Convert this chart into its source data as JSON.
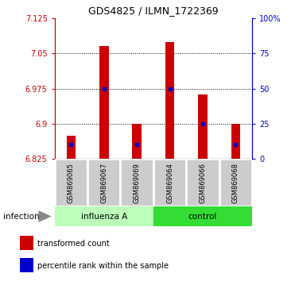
{
  "title": "GDS4825 / ILMN_1722369",
  "samples": [
    "GSM869065",
    "GSM869067",
    "GSM869069",
    "GSM869064",
    "GSM869066",
    "GSM869068"
  ],
  "group_labels": [
    "influenza A",
    "control"
  ],
  "influenza_color": "#bbffbb",
  "control_color": "#33dd33",
  "ymin": 6.825,
  "ymax": 7.125,
  "yticks": [
    6.825,
    6.9,
    6.975,
    7.05,
    7.125
  ],
  "right_yticks_pct": [
    0,
    25,
    50,
    75,
    100
  ],
  "right_ytick_labels": [
    "0",
    "25",
    "50",
    "75",
    "100%"
  ],
  "bar_tops": [
    6.875,
    7.065,
    6.9,
    7.075,
    6.963,
    6.9
  ],
  "pct_y": [
    6.856,
    6.975,
    6.856,
    6.975,
    6.9,
    6.856
  ],
  "bar_color": "#cc0000",
  "pct_color": "#0000cc",
  "left_axis_color": "#cc0000",
  "right_axis_color": "#0000cc",
  "annotation_label": "infection",
  "legend_items": [
    {
      "color": "#cc0000",
      "label": "transformed count"
    },
    {
      "color": "#0000cc",
      "label": "percentile rank within the sample"
    }
  ]
}
